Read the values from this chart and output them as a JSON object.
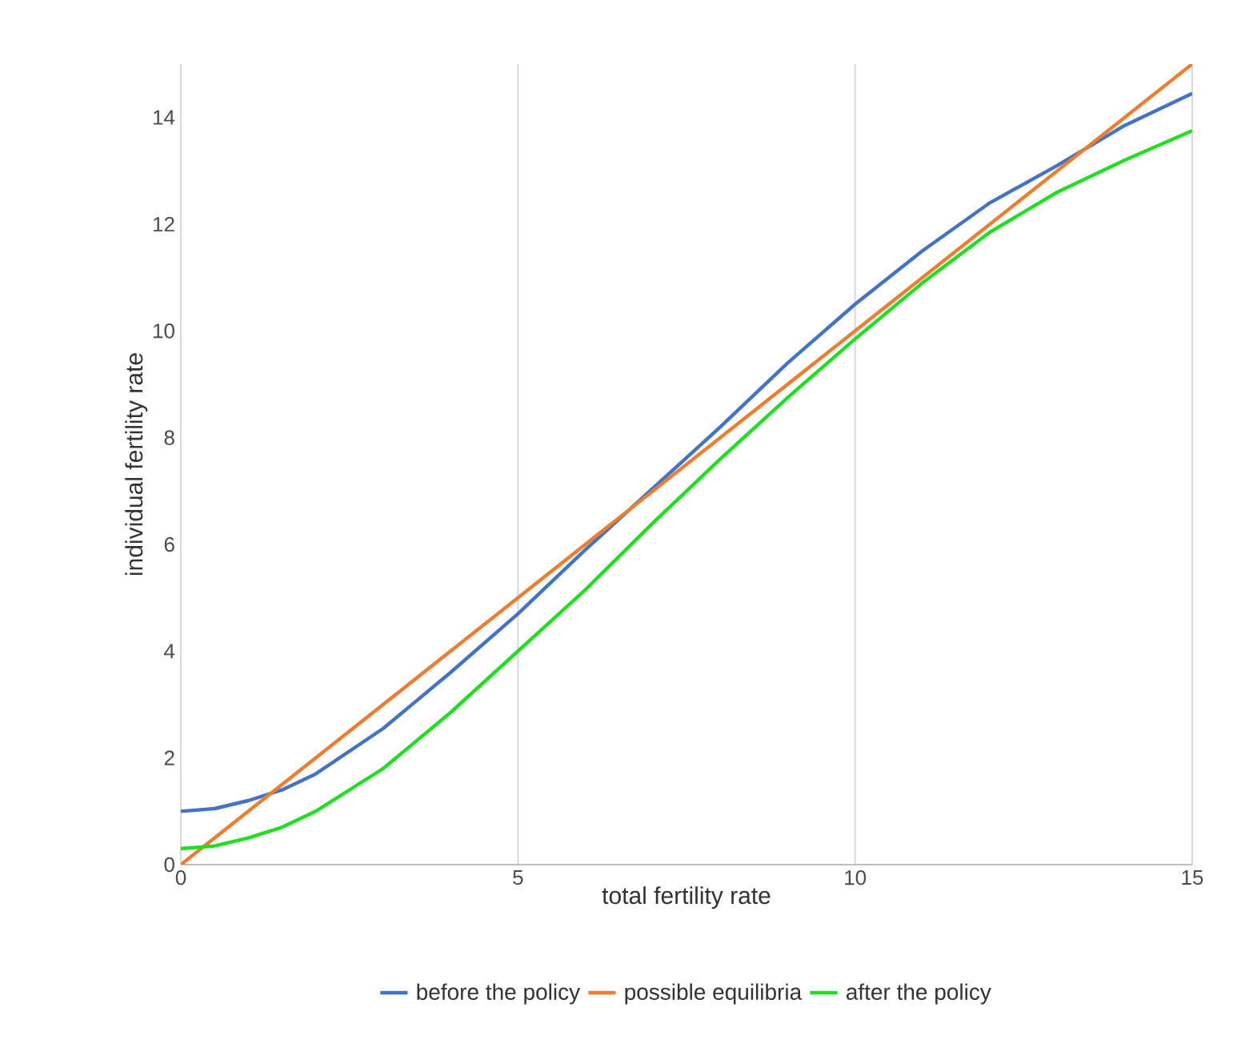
{
  "chart_data": {
    "type": "line",
    "xlabel": "total fertility rate",
    "ylabel": "individual fertility rate",
    "xlim": [
      0,
      15
    ],
    "ylim": [
      0,
      15
    ],
    "xticks": [
      0,
      5,
      10,
      15
    ],
    "yticks": [
      0,
      2,
      4,
      6,
      8,
      10,
      12,
      14
    ],
    "grid": "x",
    "legend": "bottom",
    "marker": "none",
    "series": [
      {
        "name": "before the policy",
        "color": "#4472c4",
        "x": [
          0,
          0.5,
          1,
          1.5,
          2,
          3,
          4,
          5,
          6,
          7,
          8,
          9,
          10,
          11,
          12,
          13,
          14,
          15
        ],
        "values": [
          1.0,
          1.05,
          1.2,
          1.4,
          1.7,
          2.55,
          3.6,
          4.7,
          5.9,
          7.05,
          8.2,
          9.4,
          10.5,
          11.5,
          12.4,
          13.1,
          13.85,
          14.45
        ]
      },
      {
        "name": "possible equilibria",
        "color": "#ed7d31",
        "x": [
          0,
          15
        ],
        "values": [
          0,
          15
        ]
      },
      {
        "name": "after the policy",
        "color": "#22dd22",
        "x": [
          0,
          0.5,
          1,
          1.5,
          2,
          3,
          4,
          5,
          6,
          7,
          8,
          9,
          10,
          11,
          12,
          13,
          14,
          15
        ],
        "values": [
          0.3,
          0.35,
          0.5,
          0.7,
          1.0,
          1.8,
          2.85,
          4.0,
          5.15,
          6.4,
          7.6,
          8.75,
          9.85,
          10.9,
          11.85,
          12.6,
          13.2,
          13.75
        ]
      }
    ]
  }
}
